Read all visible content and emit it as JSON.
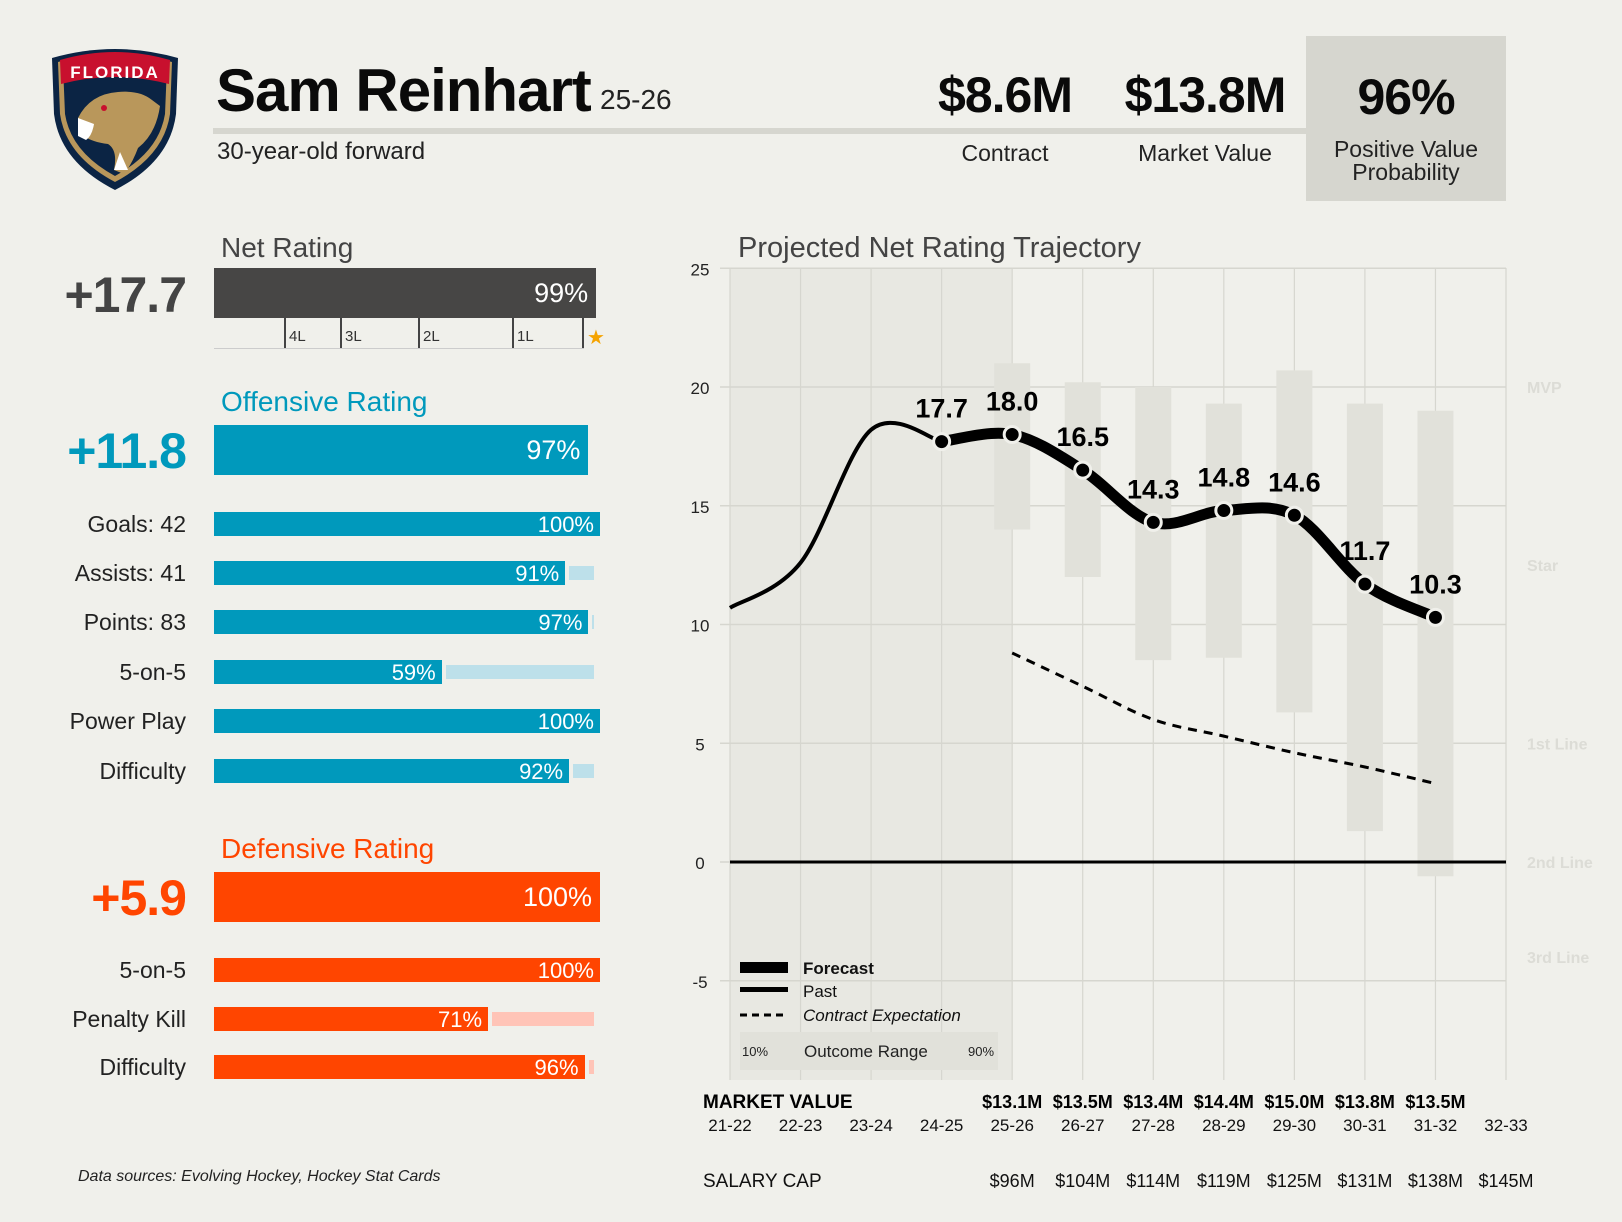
{
  "header": {
    "team_logo_text": "FLORIDA",
    "player_name": "Sam Reinhart",
    "season": "25-26",
    "subtitle": "30-year-old forward",
    "contract_value": "$8.6M",
    "contract_label": "Contract",
    "market_value": "$13.8M",
    "market_label": "Market Value",
    "pvp_value": "96%",
    "pvp_label_1": "Positive Value",
    "pvp_label_2": "Probability"
  },
  "net_rating": {
    "title": "Net Rating",
    "value": "+17.7",
    "percentile": 99,
    "percentile_label": "99%",
    "tiers": [
      "4L",
      "3L",
      "2L",
      "1L"
    ],
    "star_icon": "★",
    "color": "#474645"
  },
  "offense": {
    "title": "Offensive Rating",
    "value": "+11.8",
    "percentile": 97,
    "percentile_label": "97%",
    "color": "#0099bc",
    "ghost_color": "#bde0ea",
    "rows": [
      {
        "label": "Goals: 42",
        "pct": 100,
        "pct_label": "100%"
      },
      {
        "label": "Assists: 41",
        "pct": 91,
        "pct_label": "91%"
      },
      {
        "label": "Points: 83",
        "pct": 97,
        "pct_label": "97%"
      },
      {
        "label": "5-on-5",
        "pct": 59,
        "pct_label": "59%"
      },
      {
        "label": "Power Play",
        "pct": 100,
        "pct_label": "100%"
      },
      {
        "label": "Difficulty",
        "pct": 92,
        "pct_label": "92%"
      }
    ]
  },
  "defense": {
    "title": "Defensive Rating",
    "value": "+5.9",
    "percentile": 100,
    "percentile_label": "100%",
    "color": "#ff4500",
    "ghost_color": "#ffc4b7",
    "rows": [
      {
        "label": "5-on-5",
        "pct": 100,
        "pct_label": "100%"
      },
      {
        "label": "Penalty Kill",
        "pct": 71,
        "pct_label": "71%"
      },
      {
        "label": "Difficulty",
        "pct": 96,
        "pct_label": "96%"
      }
    ]
  },
  "footer": {
    "sources": "Data sources: Evolving Hockey, Hockey Stat Cards"
  },
  "chart_data": {
    "type": "line",
    "title": "Projected Net Rating Trajectory",
    "x": [
      "21-22",
      "22-23",
      "23-24",
      "24-25",
      "25-26",
      "26-27",
      "27-28",
      "28-29",
      "29-30",
      "30-31",
      "31-32",
      "32-33"
    ],
    "ylim": [
      -9,
      25
    ],
    "yticks": [
      25,
      20,
      15,
      10,
      5,
      0,
      -5
    ],
    "grid": true,
    "series": [
      {
        "name": "Past",
        "x": [
          "21-22",
          "22-23",
          "23-24",
          "24-25"
        ],
        "values": [
          10.7,
          12.6,
          18.2,
          17.7
        ]
      },
      {
        "name": "Forecast",
        "x": [
          "24-25",
          "25-26",
          "26-27",
          "27-28",
          "28-29",
          "29-30",
          "30-31",
          "31-32"
        ],
        "values": [
          17.7,
          18.0,
          16.5,
          14.3,
          14.8,
          14.6,
          11.7,
          10.3
        ],
        "labels": [
          "17.7",
          "18.0",
          "16.5",
          "14.3",
          "14.8",
          "14.6",
          "11.7",
          "10.3"
        ]
      },
      {
        "name": "Contract Expectation",
        "x": [
          "25-26",
          "26-27",
          "27-28",
          "28-29",
          "29-30",
          "30-31",
          "31-32"
        ],
        "values": [
          8.8,
          7.4,
          6.0,
          5.3,
          4.6,
          4.0,
          3.3
        ]
      }
    ],
    "outcome_range": {
      "name": "Outcome Range",
      "low_label": "10%",
      "high_label": "90%",
      "x": [
        "25-26",
        "26-27",
        "27-28",
        "28-29",
        "29-30",
        "30-31",
        "31-32"
      ],
      "low": [
        14.0,
        12.0,
        8.5,
        8.6,
        6.3,
        1.3,
        -0.6
      ],
      "high": [
        21.0,
        20.2,
        20.0,
        19.3,
        20.7,
        19.3,
        19.0
      ]
    },
    "tier_labels": [
      {
        "label": "MVP",
        "y": 20
      },
      {
        "label": "Star",
        "y": 12.5
      },
      {
        "label": "1st Line",
        "y": 5
      },
      {
        "label": "2nd Line",
        "y": 0
      },
      {
        "label": "3rd Line",
        "y": -4
      }
    ],
    "legend": {
      "position": "bottom-left",
      "entries": [
        "Forecast",
        "Past",
        "Contract Expectation"
      ]
    },
    "market_value_label": "MARKET VALUE",
    "market_values": [
      "",
      "",
      "",
      "",
      "$13.1M",
      "$13.5M",
      "$13.4M",
      "$14.4M",
      "$15.0M",
      "$13.8M",
      "$13.5M",
      ""
    ],
    "salary_cap_label": "SALARY CAP",
    "salary_caps": [
      "",
      "",
      "",
      "",
      "$96M",
      "$104M",
      "$114M",
      "$119M",
      "$125M",
      "$131M",
      "$138M",
      "$145M"
    ]
  }
}
